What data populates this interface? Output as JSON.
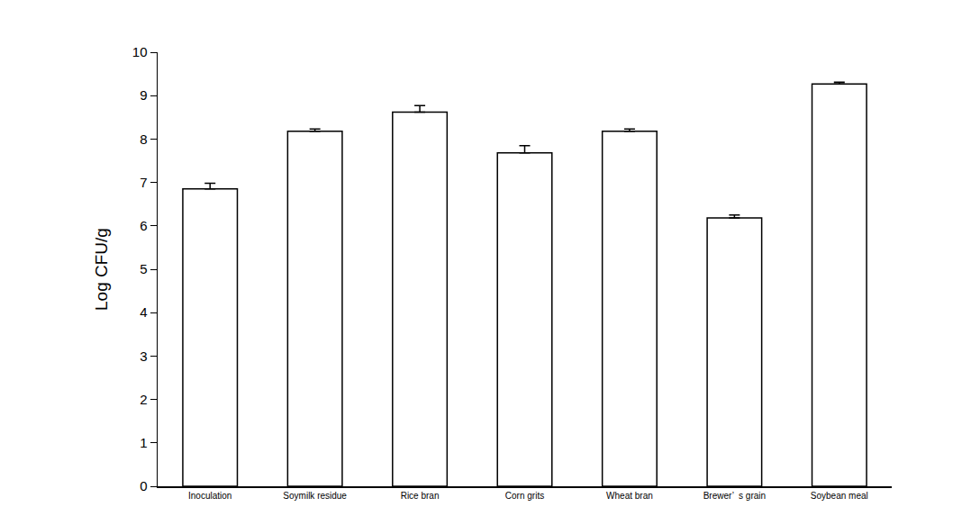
{
  "chart_data": {
    "type": "bar",
    "y_label": "Log CFU/g",
    "categories": [
      "Inoculation",
      "Soymilk residue",
      "Rice bran",
      "Corn grits",
      "Wheat bran",
      "Brewer’  s grain",
      "Soybean meal"
    ],
    "values": [
      6.85,
      8.18,
      8.62,
      7.68,
      8.18,
      6.18,
      9.27
    ],
    "error": [
      0.13,
      0.05,
      0.15,
      0.17,
      0.05,
      0.07,
      0.04
    ],
    "color": "#ffffff",
    "ylim": [
      0,
      10
    ],
    "yticks": [
      0,
      1,
      2,
      3,
      4,
      5,
      6,
      7,
      8,
      9,
      10
    ],
    "grid": false
  }
}
